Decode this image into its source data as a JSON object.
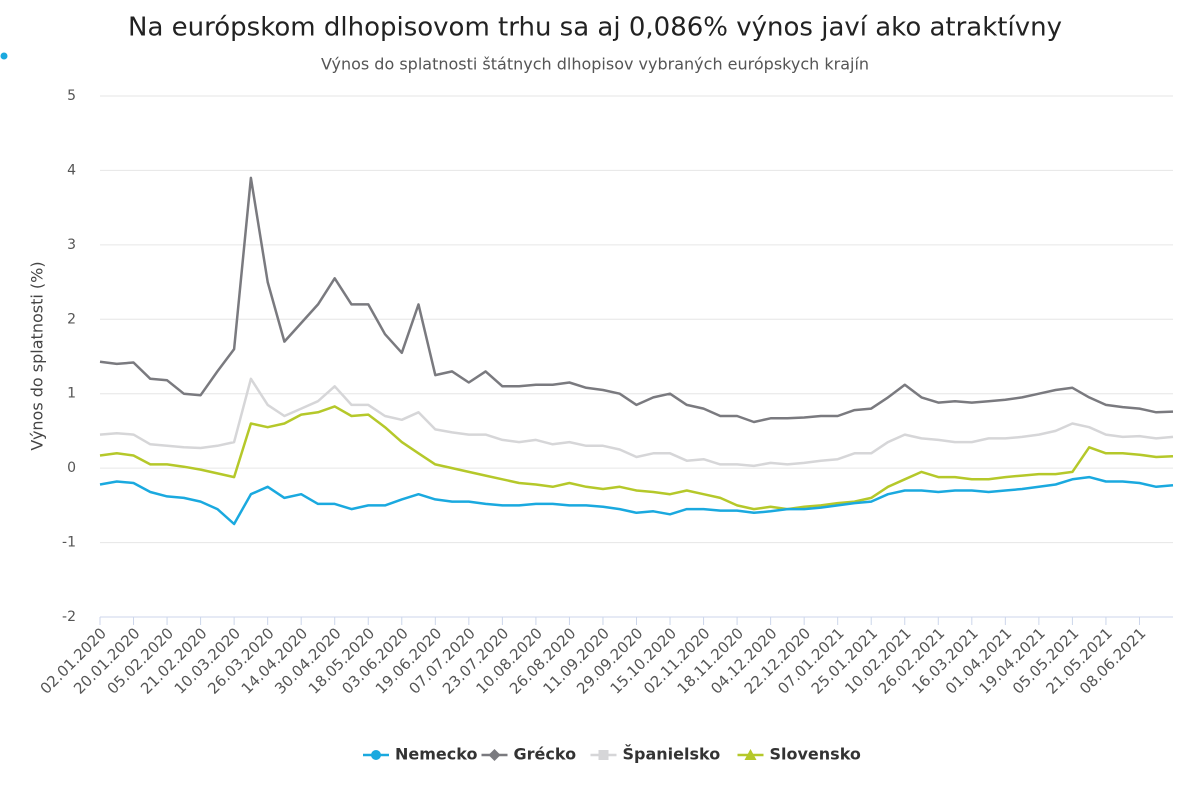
{
  "chart_data": {
    "type": "line",
    "title": "Na európskom dlhopisovom trhu sa aj 0,086% výnos javí ako atraktívny",
    "subtitle": "Výnos do splatnosti štátnych dlhopisov vybraných európskych krajín",
    "y_label": "Výnos do splatnosti (%)",
    "categories": [
      "02.01.2020",
      null,
      "20.01.2020",
      null,
      "05.02.2020",
      null,
      "21.02.2020",
      null,
      "10.03.2020",
      null,
      "26.03.2020",
      null,
      "14.04.2020",
      null,
      "30.04.2020",
      null,
      "18.05.2020",
      null,
      "03.06.2020",
      null,
      "19.06.2020",
      null,
      "07.07.2020",
      null,
      "23.07.2020",
      null,
      "10.08.2020",
      null,
      "26.08.2020",
      null,
      "11.09.2020",
      null,
      "29.09.2020",
      null,
      "15.10.2020",
      null,
      "02.11.2020",
      null,
      "18.11.2020",
      null,
      "04.12.2020",
      null,
      "22.12.2020",
      null,
      "07.01.2021",
      null,
      "25.01.2021",
      null,
      "10.02.2021",
      null,
      "26.02.2021",
      null,
      "16.03.2021",
      null,
      "01.04.2021",
      null,
      "19.04.2021",
      null,
      "05.05.2021",
      null,
      "21.05.2021",
      null,
      "08.06.2021",
      null,
      null
    ],
    "series": [
      {
        "name": "Nemecko",
        "color": "#1aa9df",
        "marker": "circle",
        "values": [
          -0.22,
          -0.18,
          -0.2,
          -0.32,
          -0.38,
          -0.4,
          -0.45,
          -0.55,
          -0.75,
          -0.35,
          -0.25,
          -0.4,
          -0.35,
          -0.48,
          -0.48,
          -0.55,
          -0.5,
          -0.5,
          -0.42,
          -0.35,
          -0.42,
          -0.45,
          -0.45,
          -0.48,
          -0.5,
          -0.5,
          -0.48,
          -0.48,
          -0.5,
          -0.5,
          -0.52,
          -0.55,
          -0.6,
          -0.58,
          -0.62,
          -0.55,
          -0.55,
          -0.57,
          -0.57,
          -0.6,
          -0.58,
          -0.55,
          -0.55,
          -0.53,
          -0.5,
          -0.47,
          -0.45,
          -0.35,
          -0.3,
          -0.3,
          -0.32,
          -0.3,
          -0.3,
          -0.32,
          -0.3,
          -0.28,
          -0.25,
          -0.22,
          -0.15,
          -0.12,
          -0.18,
          -0.18,
          -0.2,
          -0.25,
          -0.23
        ]
      },
      {
        "name": "Grécko",
        "color": "#7a7a7f",
        "marker": "diamond",
        "values": [
          1.43,
          1.4,
          1.42,
          1.2,
          1.18,
          1.0,
          0.98,
          1.3,
          1.6,
          3.9,
          2.5,
          1.7,
          1.95,
          2.2,
          2.55,
          2.2,
          2.2,
          1.8,
          1.55,
          2.2,
          1.25,
          1.3,
          1.15,
          1.3,
          1.1,
          1.1,
          1.12,
          1.12,
          1.15,
          1.08,
          1.05,
          1.0,
          0.85,
          0.95,
          1.0,
          0.85,
          0.8,
          0.7,
          0.7,
          0.62,
          0.67,
          0.67,
          0.68,
          0.7,
          0.7,
          0.78,
          0.8,
          0.95,
          1.12,
          0.95,
          0.88,
          0.9,
          0.88,
          0.9,
          0.92,
          0.95,
          1.0,
          1.05,
          1.08,
          0.95,
          0.85,
          0.82,
          0.8,
          0.75,
          0.76
        ]
      },
      {
        "name": "Španielsko",
        "color": "#d6d6d8",
        "marker": "square",
        "values": [
          0.45,
          0.47,
          0.45,
          0.32,
          0.3,
          0.28,
          0.27,
          0.3,
          0.35,
          1.2,
          0.85,
          0.7,
          0.8,
          0.9,
          1.1,
          0.85,
          0.85,
          0.7,
          0.65,
          0.75,
          0.52,
          0.48,
          0.45,
          0.45,
          0.38,
          0.35,
          0.38,
          0.32,
          0.35,
          0.3,
          0.3,
          0.25,
          0.15,
          0.2,
          0.2,
          0.1,
          0.12,
          0.05,
          0.05,
          0.03,
          0.07,
          0.05,
          0.07,
          0.1,
          0.12,
          0.2,
          0.2,
          0.35,
          0.45,
          0.4,
          0.38,
          0.35,
          0.35,
          0.4,
          0.4,
          0.42,
          0.45,
          0.5,
          0.6,
          0.55,
          0.45,
          0.42,
          0.43,
          0.4,
          0.42
        ]
      },
      {
        "name": "Slovensko",
        "color": "#b5c82a",
        "marker": "triangle",
        "values": [
          0.17,
          0.2,
          0.17,
          0.05,
          0.05,
          0.02,
          -0.02,
          -0.07,
          -0.12,
          0.6,
          0.55,
          0.6,
          0.72,
          0.75,
          0.83,
          0.7,
          0.72,
          0.55,
          0.35,
          0.2,
          0.05,
          0.0,
          -0.05,
          -0.1,
          -0.15,
          -0.2,
          -0.22,
          -0.25,
          -0.2,
          -0.25,
          -0.28,
          -0.25,
          -0.3,
          -0.32,
          -0.35,
          -0.3,
          -0.35,
          -0.4,
          -0.5,
          -0.55,
          -0.52,
          -0.55,
          -0.52,
          -0.5,
          -0.47,
          -0.45,
          -0.4,
          -0.25,
          -0.15,
          -0.05,
          -0.12,
          -0.12,
          -0.15,
          -0.15,
          -0.12,
          -0.1,
          -0.08,
          -0.08,
          -0.05,
          0.28,
          0.2,
          0.2,
          0.18,
          0.15,
          0.16
        ]
      }
    ],
    "ylim": [
      -2,
      5
    ],
    "yticks": [
      -2,
      -1,
      0,
      1,
      2,
      3,
      4,
      5
    ],
    "grid": true,
    "legend": "bottom"
  }
}
